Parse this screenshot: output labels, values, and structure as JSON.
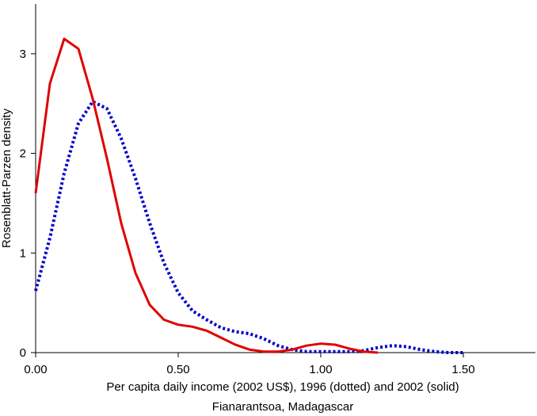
{
  "chart_data": {
    "type": "line",
    "y_label": "Rosenblatt-Parzen density",
    "x_label": "Per capita daily income (2002 US$), 1996 (dotted) and 2002 (solid)",
    "subtitle": "Fianarantsoa, Madagascar",
    "x": [
      0,
      0.05,
      0.1,
      0.15,
      0.2,
      0.25,
      0.3,
      0.35,
      0.4,
      0.45,
      0.5,
      0.55,
      0.6,
      0.65,
      0.7,
      0.75,
      0.8,
      0.85,
      0.9,
      0.95,
      1.0,
      1.05,
      1.1,
      1.15,
      1.2,
      1.25,
      1.3,
      1.35,
      1.4,
      1.45,
      1.5
    ],
    "series": [
      {
        "color": "#0000cc",
        "line_style": "dotted",
        "values": [
          0.62,
          1.15,
          1.8,
          2.3,
          2.52,
          2.45,
          2.15,
          1.75,
          1.3,
          0.9,
          0.6,
          0.42,
          0.33,
          0.25,
          0.21,
          0.19,
          0.14,
          0.07,
          0.03,
          0.01,
          0.01,
          0.01,
          0.01,
          0.02,
          0.05,
          0.07,
          0.06,
          0.03,
          0.01,
          0,
          0
        ]
      },
      {
        "color": "#e00000",
        "line_style": "solid",
        "values": [
          1.6,
          2.7,
          3.15,
          3.05,
          2.55,
          1.95,
          1.3,
          0.8,
          0.48,
          0.33,
          0.28,
          0.26,
          0.22,
          0.15,
          0.08,
          0.03,
          0.01,
          0.01,
          0.03,
          0.07,
          0.09,
          0.08,
          0.04,
          0.01,
          0,
          null,
          null,
          null,
          null,
          null,
          null
        ]
      }
    ],
    "xlim": [
      0,
      1.75
    ],
    "ylim": [
      0,
      3.5
    ],
    "xticks": [
      {
        "value": 0,
        "label": "0.00"
      },
      {
        "value": 0.5,
        "label": "0.50"
      },
      {
        "value": 1.0,
        "label": "1.00"
      },
      {
        "value": 1.5,
        "label": "1.50"
      }
    ],
    "yticks": [
      0,
      1,
      2,
      3
    ]
  }
}
